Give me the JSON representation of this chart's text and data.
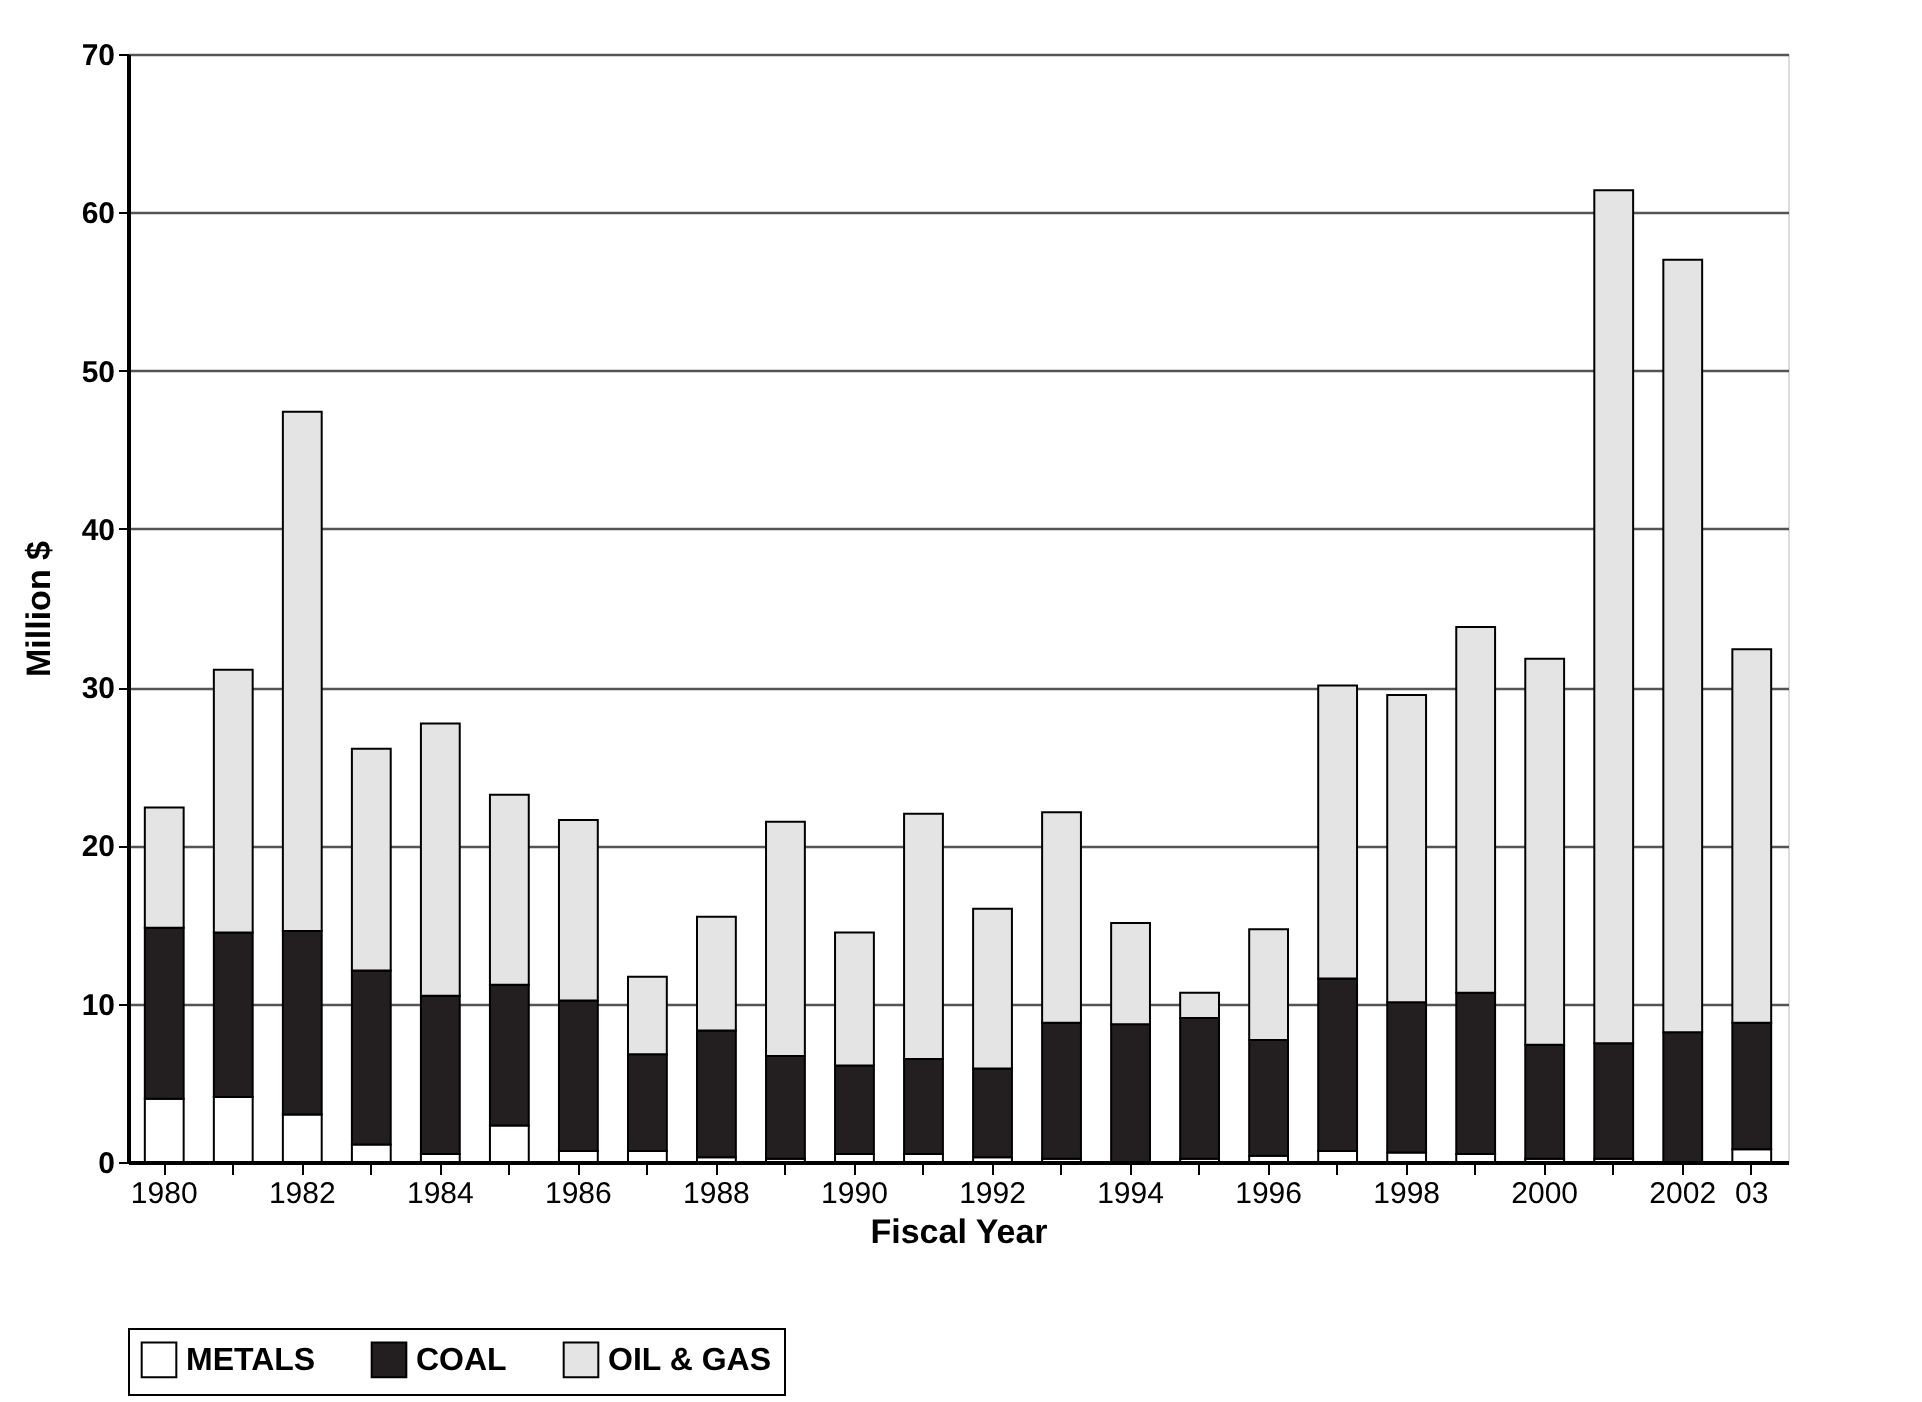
{
  "chart_data": {
    "type": "bar",
    "stacked": true,
    "xlabel": "Fiscal Year",
    "ylabel": "Million $",
    "categories": [
      "1980",
      null,
      "1982",
      null,
      "1984",
      null,
      "1986",
      null,
      "1988",
      null,
      "1990",
      null,
      "1992",
      null,
      "1994",
      null,
      "1996",
      null,
      "1998",
      null,
      "2000",
      null,
      "2002",
      "03"
    ],
    "series": [
      {
        "name": "METALS",
        "color": "#ffffff",
        "values": [
          4.0,
          4.1,
          3.0,
          1.1,
          0.5,
          2.3,
          0.7,
          0.7,
          0.3,
          0.2,
          0.5,
          0.5,
          0.3,
          0.2,
          0.0,
          0.2,
          0.4,
          0.7,
          0.6,
          0.5,
          0.2,
          0.2,
          null,
          0.8
        ]
      },
      {
        "name": "COAL",
        "color": "#231f20",
        "values": [
          10.8,
          10.4,
          11.6,
          11.0,
          10.0,
          8.9,
          9.5,
          6.1,
          8.0,
          6.5,
          5.6,
          6.0,
          5.6,
          8.6,
          8.7,
          8.9,
          7.3,
          10.9,
          9.5,
          10.2,
          7.2,
          7.3,
          8.2,
          8.0
        ]
      },
      {
        "name": "OIL & GAS",
        "color": "#e4e4e4",
        "values": [
          7.6,
          16.6,
          32.8,
          14.0,
          17.2,
          12.0,
          11.4,
          4.9,
          7.2,
          14.8,
          8.4,
          15.5,
          10.1,
          13.3,
          6.4,
          1.6,
          7.0,
          18.5,
          19.4,
          23.1,
          24.4,
          53.9,
          48.8,
          23.6
        ]
      }
    ],
    "ylim": [
      0,
      70
    ],
    "yticks": [
      0,
      10,
      20,
      30,
      40,
      50,
      60,
      70
    ],
    "grid": "y",
    "legend": "bottom"
  }
}
